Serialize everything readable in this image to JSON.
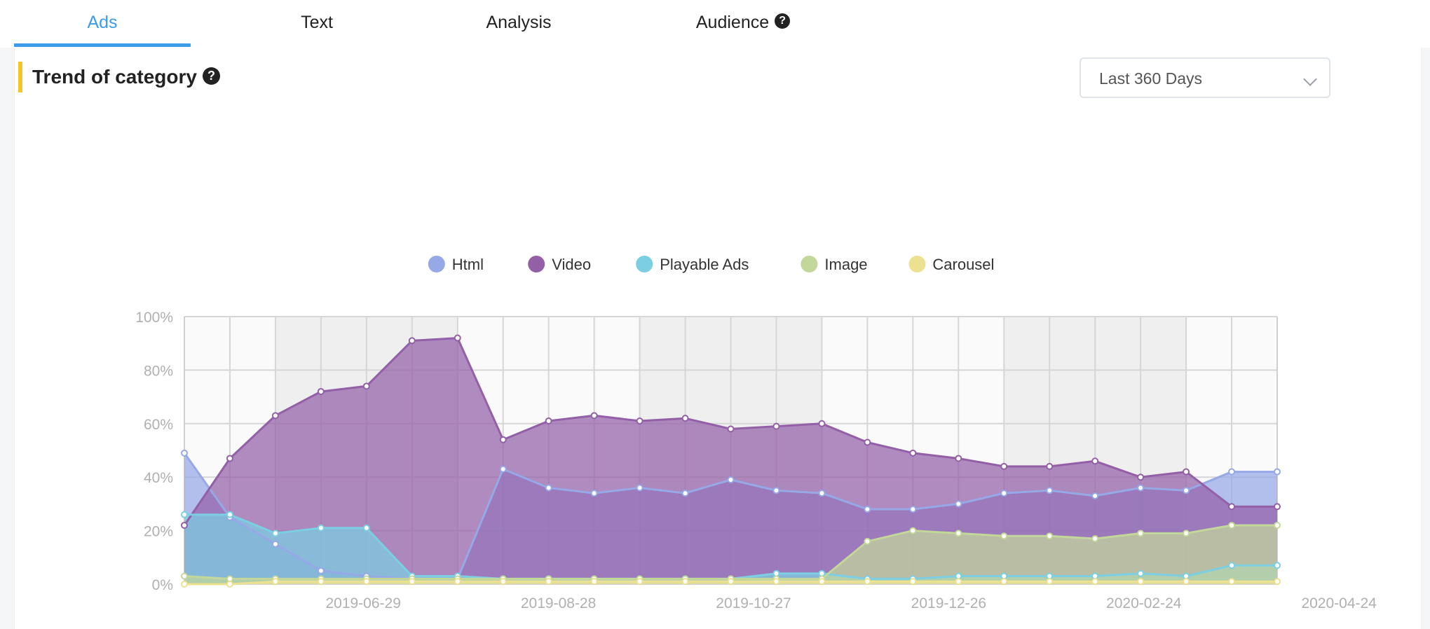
{
  "tabs": [
    {
      "label": "Ads",
      "active": true
    },
    {
      "label": "Text",
      "active": false
    },
    {
      "label": "Analysis",
      "active": false
    },
    {
      "label": "Audience",
      "active": false,
      "help": "?"
    }
  ],
  "section": {
    "title": "Trend of category",
    "help": "?"
  },
  "date_range": {
    "value": "Last 360 Days"
  },
  "colors": {
    "accent": "#3d9be9",
    "title_bar": "#f5c32c"
  },
  "chart_data": {
    "type": "area",
    "x": [
      "2019-05-05",
      "2019-05-19",
      "2019-06-02",
      "2019-06-16",
      "2019-06-30",
      "2019-07-14",
      "2019-07-28",
      "2019-08-11",
      "2019-08-25",
      "2019-09-08",
      "2019-09-22",
      "2019-10-06",
      "2019-10-20",
      "2019-11-03",
      "2019-11-17",
      "2019-12-01",
      "2019-12-15",
      "2019-12-29",
      "2020-01-12",
      "2020-01-26",
      "2020-02-09",
      "2020-02-23",
      "2020-03-08",
      "2020-03-22",
      "2020-04-05"
    ],
    "x_tick_labels": [
      "2019-06-29",
      "2019-08-28",
      "2019-10-27",
      "2019-12-26",
      "2020-02-24",
      "2020-04-24"
    ],
    "y_tick_labels": [
      "0%",
      "20%",
      "40%",
      "60%",
      "80%",
      "100%"
    ],
    "ylim": [
      0,
      100
    ],
    "y_unit": "%",
    "grid": true,
    "legend_position": "top",
    "series": [
      {
        "name": "Html",
        "color": "#96a8e6",
        "values": [
          49,
          25,
          15,
          5,
          3,
          2,
          2,
          43,
          36,
          34,
          36,
          34,
          39,
          35,
          34,
          28,
          28,
          30,
          34,
          35,
          33,
          36,
          35,
          42,
          42
        ]
      },
      {
        "name": "Video",
        "color": "#9360a7",
        "values": [
          22,
          47,
          63,
          72,
          74,
          91,
          92,
          54,
          61,
          63,
          61,
          62,
          58,
          59,
          60,
          53,
          49,
          47,
          44,
          44,
          46,
          40,
          42,
          29,
          29
        ]
      },
      {
        "name": "Playable Ads",
        "color": "#7ccfe3",
        "values": [
          26,
          26,
          19,
          21,
          21,
          3,
          3,
          2,
          2,
          2,
          2,
          2,
          2,
          4,
          4,
          2,
          2,
          3,
          3,
          3,
          3,
          4,
          3,
          7,
          7
        ]
      },
      {
        "name": "Image",
        "color": "#c3d79a",
        "values": [
          3,
          2,
          2,
          2,
          2,
          2,
          2,
          2,
          2,
          2,
          2,
          2,
          2,
          2,
          2,
          16,
          20,
          19,
          18,
          18,
          17,
          19,
          19,
          22,
          22
        ]
      },
      {
        "name": "Carousel",
        "color": "#ece191",
        "values": [
          0,
          0,
          1,
          1,
          1,
          1,
          1,
          1,
          1,
          1,
          1,
          1,
          1,
          1,
          1,
          1,
          1,
          1,
          1,
          1,
          1,
          1,
          1,
          1,
          1
        ]
      }
    ]
  }
}
